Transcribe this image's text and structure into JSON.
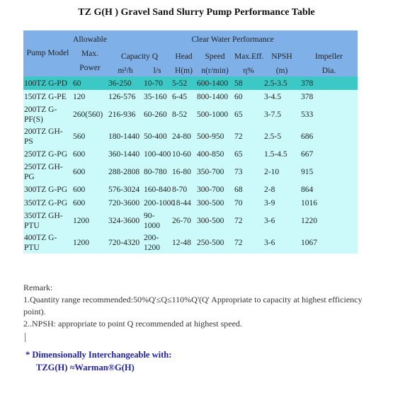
{
  "title": "TZ G(H ) Gravel Sand Slurry Pump Performance Table",
  "header": {
    "pump_model": "Pump Model",
    "allowable_max_power": "Allowable Max. Power",
    "clear_water": "Clear Water Performance",
    "capacity": "Capacity Q",
    "capacity_unit_m3h": "m³/h",
    "capacity_unit_ls": "l/s",
    "head": "Head",
    "head_unit": "H(m)",
    "speed": "Speed",
    "speed_unit": "n(r/min)",
    "max_eff": "Max.Eff.",
    "max_eff_unit": "η%",
    "npsh": "NPSH",
    "npsh_unit": "(m)",
    "impeller": "Impeller",
    "impeller_unit": "Dia."
  },
  "rows": [
    {
      "model": "100TZ G-PD",
      "power": "60",
      "q_m3h": "36-250",
      "q_ls": "10-70",
      "head": "5-52",
      "speed": "600-1400",
      "eff": "58",
      "npsh": "2.5-3.5",
      "dia": "378"
    },
    {
      "model": "150TZ G-PE",
      "power": "120",
      "q_m3h": "126-576",
      "q_ls": "35-160",
      "head": "6-45",
      "speed": "800-1400",
      "eff": "60",
      "npsh": "3-4.5",
      "dia": "378"
    },
    {
      "model": "200TZ G-PF(S)",
      "power": "260(560)",
      "q_m3h": "216-936",
      "q_ls": "60-260",
      "head": "8-52",
      "speed": "500-1000",
      "eff": "65",
      "npsh": "3-7.5",
      "dia": "533"
    },
    {
      "model": "200TZ GH-PS",
      "power": "560",
      "q_m3h": "180-1440",
      "q_ls": "50-400",
      "head": "24-80",
      "speed": "500-950",
      "eff": "72",
      "npsh": "2.5-5",
      "dia": "686"
    },
    {
      "model": "250TZ G-PG",
      "power": "600",
      "q_m3h": "360-1440",
      "q_ls": "100-400",
      "head": "10-60",
      "speed": "400-850",
      "eff": "65",
      "npsh": "1.5-4.5",
      "dia": "667"
    },
    {
      "model": "250TZ GH-PG",
      "power": "600",
      "q_m3h": "288-2808",
      "q_ls": "80-780",
      "head": "16-80",
      "speed": "350-700",
      "eff": "73",
      "npsh": "2-10",
      "dia": "915"
    },
    {
      "model": "300TZ G-PG",
      "power": "600",
      "q_m3h": "576-3024",
      "q_ls": "160-840",
      "head": "8-70",
      "speed": "300-700",
      "eff": "68",
      "npsh": "2-8",
      "dia": "864"
    },
    {
      "model": "350TZ G-PG",
      "power": "600",
      "q_m3h": "720-3600",
      "q_ls": "200-1000",
      "head": "18-44",
      "speed": "300-500",
      "eff": "70",
      "npsh": "3-9",
      "dia": "1016"
    },
    {
      "model": "350TZ GH-PTU",
      "power": "1200",
      "q_m3h": "324-3600",
      "q_ls": "90-1000",
      "head": "26-70",
      "speed": "300-500",
      "eff": "72",
      "npsh": "3-6",
      "dia": "1220"
    },
    {
      "model": "400TZ G-PTU",
      "power": "1200",
      "q_m3h": "720-4320",
      "q_ls": "200-1200",
      "head": "12-48",
      "speed": "250-500",
      "eff": "72",
      "npsh": "3-6",
      "dia": "1067"
    }
  ],
  "notes": {
    "remark": "Remark:",
    "note1": "1.Quantity range recommended:50%Q'≤Q≤110%Q'(Q' Appropriate to capacity at highest efficiency point).",
    "note2": "2..NPSH: appropriate to point Q recommended at highest speed."
  },
  "interchange": {
    "line1": "* Dimensionally Interchangeable with:",
    "line2": "TZG(H) ≈Warman®G(H)"
  },
  "colors": {
    "header_bg": "#7fb0e8",
    "row_bg": "#ccfafa",
    "highlight_bg": "#3cc9c6",
    "interchange_text": "#1f1fa6"
  }
}
